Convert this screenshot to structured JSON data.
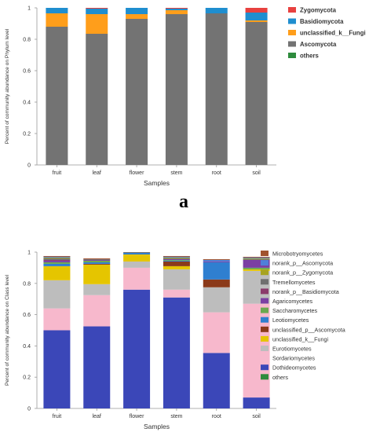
{
  "panel_label": "a",
  "chart_data": [
    {
      "type": "bar",
      "stacked": true,
      "ylabel": "Percent of community abundance on Phylum level",
      "xlabel": "Samples",
      "ylim": [
        0,
        1
      ],
      "yticks": [
        "0",
        "0.2",
        "0.4",
        "0.6",
        "0.8",
        "1"
      ],
      "categories": [
        "fruit",
        "leaf",
        "flower",
        "stem",
        "root",
        "soil"
      ],
      "legend_position": "right",
      "series": [
        {
          "name": "Zygomycota",
          "color": "#e8413f",
          "values": [
            0.0,
            0.005,
            0.0,
            0.005,
            0.0,
            0.03
          ]
        },
        {
          "name": "Basidiomycota",
          "color": "#1f8ecf",
          "values": [
            0.035,
            0.035,
            0.04,
            0.01,
            0.035,
            0.05
          ]
        },
        {
          "name": "unclassified_k__Fungi",
          "color": "#ff9e1b",
          "values": [
            0.085,
            0.125,
            0.03,
            0.025,
            0.0,
            0.01
          ]
        },
        {
          "name": "Ascomycota",
          "color": "#737373",
          "values": [
            0.88,
            0.835,
            0.93,
            0.96,
            0.965,
            0.91
          ]
        },
        {
          "name": "others",
          "color": "#2e8b3d",
          "values": [
            0.0,
            0.0,
            0.0,
            0.0,
            0.0,
            0.0
          ]
        }
      ]
    },
    {
      "type": "bar",
      "stacked": true,
      "ylabel": "Percent of community abundance on Class level",
      "xlabel": "Samples",
      "ylim": [
        0,
        1
      ],
      "yticks": [
        "0",
        "0.2",
        "0.4",
        "0.6",
        "0.8",
        "1"
      ],
      "categories": [
        "fruit",
        "leaf",
        "flower",
        "stem",
        "root",
        "soil"
      ],
      "legend_position": "right",
      "series": [
        {
          "name": "Microbotryomycetes",
          "color": "#a0522d",
          "values": [
            0.005,
            0.005,
            0.0,
            0.005,
            0.005,
            0.005
          ]
        },
        {
          "name": "norank_p__Ascomycota",
          "color": "#4f7fd8",
          "values": [
            0.005,
            0.0,
            0.0,
            0.005,
            0.01,
            0.005
          ]
        },
        {
          "name": "norank_p__Zygomycota",
          "color": "#a7a321",
          "values": [
            0.005,
            0.0,
            0.0,
            0.005,
            0.0,
            0.005
          ]
        },
        {
          "name": "Tremellomycetes",
          "color": "#6f6f6f",
          "values": [
            0.01,
            0.005,
            0.005,
            0.005,
            0.0,
            0.005
          ]
        },
        {
          "name": "norank_p__Basidiomycota",
          "color": "#8a3a6b",
          "values": [
            0.005,
            0.0,
            0.0,
            0.0,
            0.0,
            0.0
          ]
        },
        {
          "name": "Agaricomycetes",
          "color": "#7b3fa3",
          "values": [
            0.01,
            0.005,
            0.0,
            0.005,
            0.005,
            0.05
          ]
        },
        {
          "name": "Saccharomycetes",
          "color": "#6aa84f",
          "values": [
            0.01,
            0.01,
            0.0,
            0.005,
            0.0,
            0.01
          ]
        },
        {
          "name": "Leotiomycetes",
          "color": "#2f7fd0",
          "values": [
            0.015,
            0.01,
            0.01,
            0.005,
            0.11,
            0.0
          ]
        },
        {
          "name": "unclassified_p__Ascomycota",
          "color": "#8b3a1a",
          "values": [
            0.0,
            0.005,
            0.0,
            0.03,
            0.05,
            0.0
          ]
        },
        {
          "name": "unclassified_k__Fungi",
          "color": "#e5c500",
          "values": [
            0.09,
            0.125,
            0.045,
            0.02,
            0.0,
            0.01
          ]
        },
        {
          "name": "Eurotiomycetes",
          "color": "#bdbdbd",
          "values": [
            0.18,
            0.07,
            0.04,
            0.13,
            0.16,
            0.21
          ]
        },
        {
          "name": "Sordariomycetes",
          "color": "#f7b8cc",
          "values": [
            0.14,
            0.2,
            0.14,
            0.05,
            0.26,
            0.6
          ]
        },
        {
          "name": "Dothideomycetes",
          "color": "#3b47b8",
          "values": [
            0.5,
            0.525,
            0.76,
            0.71,
            0.355,
            0.07
          ]
        },
        {
          "name": "others",
          "color": "#2e8b3d",
          "values": [
            0.0,
            0.0,
            0.0,
            0.0,
            0.0,
            0.0
          ]
        }
      ],
      "extra_segments_note": ""
    }
  ]
}
